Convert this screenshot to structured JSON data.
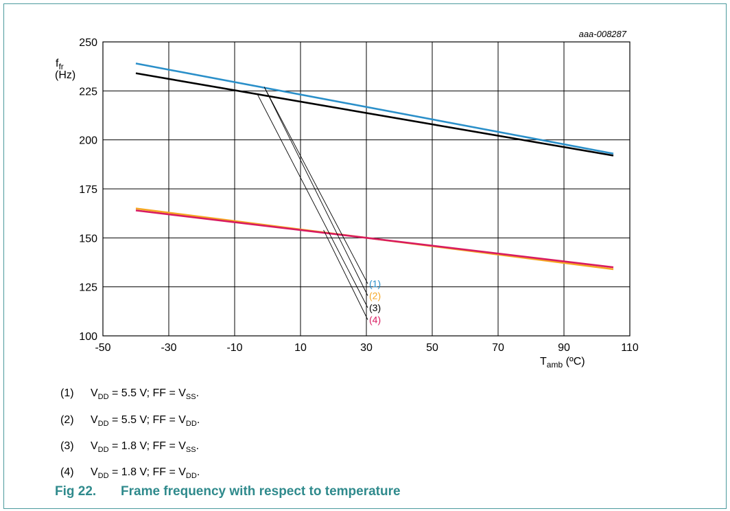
{
  "chart_data": {
    "type": "line",
    "id_label": "aaa-008287",
    "ylabel": "f",
    "ylabel_sub": "fr",
    "ylabel_unit": "(Hz)",
    "xlabel": "T",
    "xlabel_sub": "amb",
    "xlabel_unit": " (ºC)",
    "xlim": [
      -50,
      110
    ],
    "ylim": [
      100,
      250
    ],
    "xticks": [
      -50,
      -30,
      -10,
      10,
      30,
      50,
      70,
      90,
      110
    ],
    "yticks": [
      100,
      125,
      150,
      175,
      200,
      225,
      250
    ],
    "grid": true,
    "series": [
      {
        "name": "(1)",
        "color": "#2a8fc9",
        "x": [
          -40,
          105
        ],
        "y": [
          239,
          193
        ],
        "leader_from": [
          -1,
          227
        ]
      },
      {
        "name": "(2)",
        "color": "#f5a623",
        "x": [
          -40,
          105
        ],
        "y": [
          165,
          134
        ],
        "leader_from": [
          -1,
          227
        ]
      },
      {
        "name": "(3)",
        "color": "#000000",
        "x": [
          -40,
          105
        ],
        "y": [
          234,
          192
        ],
        "leader_from": [
          -3,
          223
        ]
      },
      {
        "name": "(4)",
        "color": "#d81b60",
        "x": [
          -40,
          105
        ],
        "y": [
          164,
          135
        ],
        "leader_from": [
          17,
          154
        ]
      }
    ]
  },
  "notes": [
    {
      "num": "(1)",
      "vdd_value": "5.5",
      "ff_sub": "SS"
    },
    {
      "num": "(2)",
      "vdd_value": "5.5",
      "ff_sub": "DD"
    },
    {
      "num": "(3)",
      "vdd_value": "1.8",
      "ff_sub": "SS"
    },
    {
      "num": "(4)",
      "vdd_value": "1.8",
      "ff_sub": "DD"
    }
  ],
  "caption": {
    "fig": "Fig 22.",
    "title": "Frame frequency with respect to temperature"
  }
}
